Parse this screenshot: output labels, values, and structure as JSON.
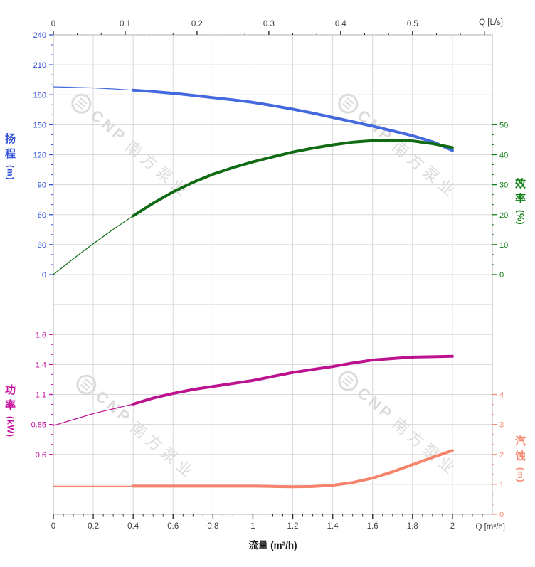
{
  "corner_labels": {
    "top_right": "Q [L/s]",
    "bottom_right": "Q [m³/h]"
  },
  "flow_axis_title": "流量 (m³/h)",
  "watermark": {
    "brand": "CNP",
    "brand_cn": "南方泵业"
  },
  "axes": {
    "head": {
      "title": "扬程",
      "unit": "(m)",
      "color": "#3050d8",
      "tick_labels": [
        "240",
        "210",
        "180",
        "150",
        "120",
        "90",
        "60",
        "30",
        "0"
      ]
    },
    "efficiency": {
      "title": "效率",
      "unit": "(%)",
      "color": "#0e7d12",
      "tick_labels": [
        "50",
        "40",
        "30",
        "20",
        "10",
        "0"
      ]
    },
    "power": {
      "title": "功率",
      "unit": "(kW)",
      "color": "#c7109c",
      "tick_labels": [
        "1.6",
        "1.4",
        "1.1",
        "0.85",
        "0.6"
      ]
    },
    "npsh": {
      "title": "汽蚀",
      "unit": "(m)",
      "color": "#f58b74",
      "tick_labels": [
        "4",
        "3",
        "2",
        "1",
        "0"
      ]
    },
    "flow_top": {
      "tick_labels": [
        "0",
        "0.1",
        "0.2",
        "0.3",
        "0.4",
        "0.5"
      ]
    },
    "flow_bottom": {
      "tick_labels": [
        "0",
        "0.2",
        "0.4",
        "0.6",
        "0.8",
        "1",
        "1.2",
        "1.4",
        "1.6",
        "1.8",
        "2"
      ]
    }
  },
  "chart_data": {
    "type": "line",
    "x_unit_bottom": "m³/h",
    "x_unit_top": "L/s",
    "x_range_m3h": [
      0,
      2.2
    ],
    "grid": true,
    "panels": [
      {
        "name": "head-efficiency",
        "series": [
          {
            "name": "head",
            "axis": "head",
            "color": "#4468dd",
            "bold_from_x": 0.4,
            "points": [
              [
                0,
                188
              ],
              [
                0.1,
                187.5
              ],
              [
                0.2,
                186.9
              ],
              [
                0.3,
                185.9
              ],
              [
                0.4,
                184.6
              ],
              [
                0.5,
                183.2
              ],
              [
                0.6,
                181.5
              ],
              [
                0.7,
                179.4
              ],
              [
                0.8,
                177.1
              ],
              [
                0.9,
                174.9
              ],
              [
                1.0,
                172.4
              ],
              [
                1.1,
                169.2
              ],
              [
                1.2,
                165.6
              ],
              [
                1.3,
                161.7
              ],
              [
                1.4,
                157.4
              ],
              [
                1.5,
                153.1
              ],
              [
                1.6,
                148.6
              ],
              [
                1.7,
                143.9
              ],
              [
                1.8,
                139.0
              ],
              [
                1.9,
                133.0
              ],
              [
                1.95,
                128.8
              ],
              [
                2.0,
                124.2
              ]
            ]
          },
          {
            "name": "efficiency",
            "axis": "efficiency",
            "color": "#106b14",
            "bold_from_x": 0.4,
            "points": [
              [
                0,
                0
              ],
              [
                0.1,
                5.3
              ],
              [
                0.2,
                10.3
              ],
              [
                0.3,
                15.1
              ],
              [
                0.4,
                19.6
              ],
              [
                0.5,
                23.8
              ],
              [
                0.6,
                27.6
              ],
              [
                0.7,
                30.8
              ],
              [
                0.8,
                33.5
              ],
              [
                0.9,
                35.7
              ],
              [
                1.0,
                37.6
              ],
              [
                1.1,
                39.3
              ],
              [
                1.2,
                40.9
              ],
              [
                1.3,
                42.2
              ],
              [
                1.4,
                43.3
              ],
              [
                1.5,
                44.2
              ],
              [
                1.6,
                44.7
              ],
              [
                1.7,
                44.9
              ],
              [
                1.8,
                44.6
              ],
              [
                1.9,
                43.7
              ],
              [
                2.0,
                42.4
              ]
            ]
          }
        ]
      },
      {
        "name": "power-npsh",
        "series": [
          {
            "name": "power",
            "axis": "power",
            "color": "#bd128e",
            "bold_from_x": 0.4,
            "points": [
              [
                0,
                0.84
              ],
              [
                0.1,
                0.89
              ],
              [
                0.2,
                0.94
              ],
              [
                0.3,
                0.98
              ],
              [
                0.4,
                1.02
              ],
              [
                0.5,
                1.07
              ],
              [
                0.6,
                1.11
              ],
              [
                0.7,
                1.15
              ],
              [
                0.8,
                1.18
              ],
              [
                0.9,
                1.21
              ],
              [
                1.0,
                1.24
              ],
              [
                1.1,
                1.28
              ],
              [
                1.2,
                1.32
              ],
              [
                1.3,
                1.35
              ],
              [
                1.4,
                1.38
              ],
              [
                1.5,
                1.41
              ],
              [
                1.6,
                1.43
              ],
              [
                1.7,
                1.44
              ],
              [
                1.8,
                1.45
              ],
              [
                1.9,
                1.452
              ],
              [
                2.0,
                1.455
              ]
            ]
          },
          {
            "name": "npsh",
            "axis": "npsh",
            "color": "#f5826a",
            "bold_from_x": 0.4,
            "points": [
              [
                0,
                0.94
              ],
              [
                0.2,
                0.94
              ],
              [
                0.4,
                0.94
              ],
              [
                0.6,
                0.94
              ],
              [
                0.8,
                0.94
              ],
              [
                1.0,
                0.94
              ],
              [
                1.1,
                0.93
              ],
              [
                1.2,
                0.92
              ],
              [
                1.3,
                0.93
              ],
              [
                1.4,
                0.97
              ],
              [
                1.5,
                1.06
              ],
              [
                1.6,
                1.21
              ],
              [
                1.7,
                1.42
              ],
              [
                1.8,
                1.66
              ],
              [
                1.9,
                1.9
              ],
              [
                2.0,
                2.13
              ]
            ]
          }
        ]
      }
    ]
  }
}
